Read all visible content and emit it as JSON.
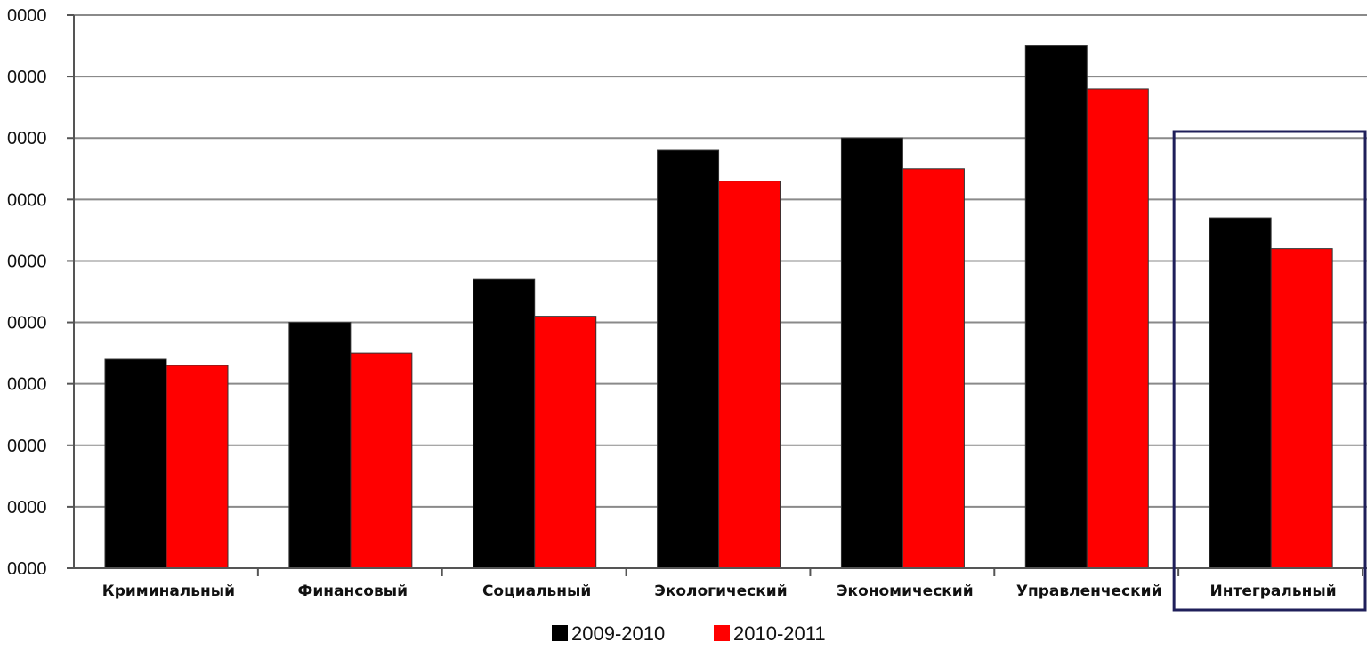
{
  "chart_data": {
    "type": "bar",
    "title": "",
    "xlabel": "",
    "ylabel": "",
    "categories": [
      "Криминальный",
      "Финансовый",
      "Социальный",
      "Экологический",
      "Экономический",
      "Управленческий",
      "Интегральный"
    ],
    "series": [
      {
        "name": "2009-2010",
        "color": "#000000",
        "values": [
          3.4,
          4.0,
          4.7,
          6.8,
          7.0,
          8.5,
          5.7
        ]
      },
      {
        "name": "2010-2011",
        "color": "#ff0000",
        "values": [
          3.3,
          3.5,
          4.1,
          6.3,
          6.5,
          7.8,
          5.2
        ]
      }
    ],
    "ylim": [
      0,
      9
    ],
    "y_tick_labels": [
      "0000",
      "0000",
      "0000",
      "0000",
      "0000",
      "0000",
      "0000",
      "0000",
      "0000",
      "0000"
    ],
    "grid": true,
    "legend": "bottom-center",
    "highlighted_category": "Интегральный",
    "highlight_color": "#1f1f5a"
  }
}
